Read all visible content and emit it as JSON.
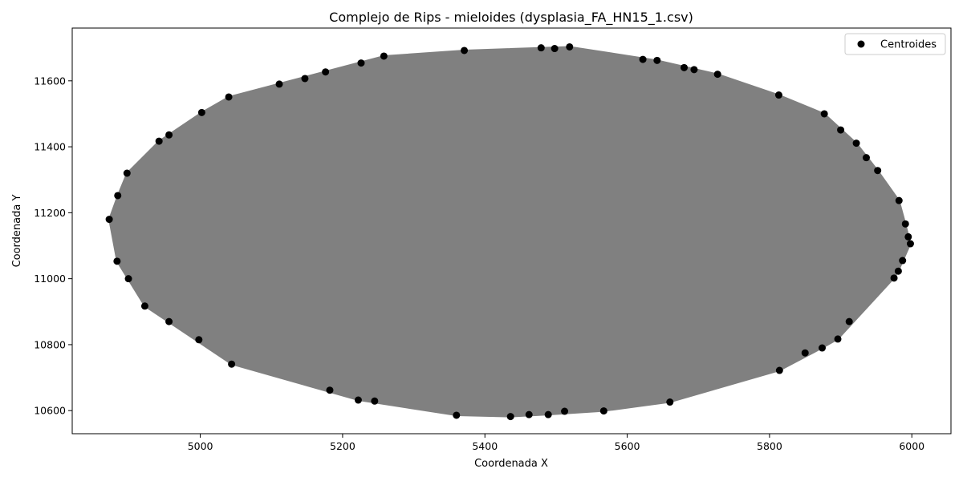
{
  "chart_data": {
    "type": "scatter",
    "title": "Complejo de Rips - mieloides (dysplasia_FA_HN15_1.csv)",
    "xlabel": "Coordenada X",
    "ylabel": "Coordenada Y",
    "xlim": [
      4820,
      6055
    ],
    "ylim": [
      10530,
      11760
    ],
    "xticks": [
      5000,
      5200,
      5400,
      5600,
      5800,
      6000
    ],
    "yticks": [
      10600,
      10800,
      11000,
      11200,
      11400,
      11600
    ],
    "grid": false,
    "legend": {
      "position": "top-right",
      "entries": [
        {
          "label": "Centroides",
          "color": "#000000",
          "marker": "circle"
        }
      ]
    },
    "edge_color": "#808080",
    "point_color": "#000000",
    "series": [
      {
        "name": "Centroides",
        "points": [
          [
            4872,
            11180
          ],
          [
            4884,
            11252
          ],
          [
            4883,
            11053
          ],
          [
            4897,
            11320
          ],
          [
            4899,
            11000
          ],
          [
            4922,
            10917
          ],
          [
            4942,
            11417
          ],
          [
            4956,
            11436
          ],
          [
            4956,
            10870
          ],
          [
            4998,
            10815
          ],
          [
            5002,
            11504
          ],
          [
            5040,
            11551
          ],
          [
            5044,
            10741
          ],
          [
            5111,
            11590
          ],
          [
            5147,
            11607
          ],
          [
            5176,
            11627
          ],
          [
            5182,
            10662
          ],
          [
            5222,
            10632
          ],
          [
            5226,
            11654
          ],
          [
            5245,
            10629
          ],
          [
            5258,
            11675
          ],
          [
            5360,
            10586
          ],
          [
            5371,
            11692
          ],
          [
            5436,
            10582
          ],
          [
            5462,
            10588
          ],
          [
            5479,
            11700
          ],
          [
            5489,
            10588
          ],
          [
            5498,
            11698
          ],
          [
            5512,
            10598
          ],
          [
            5519,
            11703
          ],
          [
            5567,
            10599
          ],
          [
            5622,
            11665
          ],
          [
            5642,
            11662
          ],
          [
            5660,
            10626
          ],
          [
            5680,
            11640
          ],
          [
            5694,
            11634
          ],
          [
            5727,
            11620
          ],
          [
            5813,
            11557
          ],
          [
            5814,
            10722
          ],
          [
            5850,
            10775
          ],
          [
            5874,
            10790
          ],
          [
            5877,
            11500
          ],
          [
            5896,
            10817
          ],
          [
            5900,
            11451
          ],
          [
            5912,
            10870
          ],
          [
            5922,
            11411
          ],
          [
            5936,
            11367
          ],
          [
            5952,
            11328
          ],
          [
            5975,
            11002
          ],
          [
            5981,
            11023
          ],
          [
            5982,
            11237
          ],
          [
            5987,
            11055
          ],
          [
            5991,
            11166
          ],
          [
            5995,
            11127
          ],
          [
            5998,
            11106
          ]
        ]
      }
    ]
  }
}
